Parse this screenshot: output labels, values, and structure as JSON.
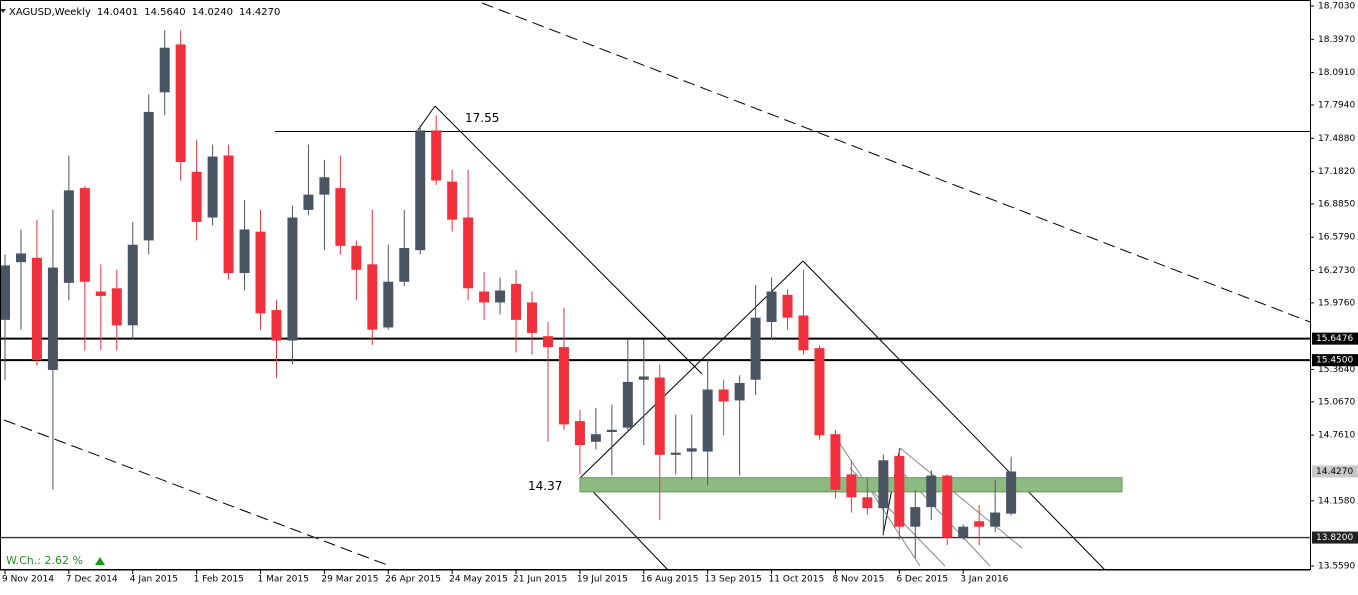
{
  "chart_data": {
    "type": "candlestick",
    "title": "XAGUSD,Weekly",
    "header": [
      "14.0401",
      "14.5640",
      "14.0240",
      "14.4270"
    ],
    "change_label": "W.Ch.: 2.62 %",
    "categories": [
      "9 Nov 2014",
      null,
      null,
      null,
      "7 Dec 2014",
      null,
      null,
      null,
      "4 Jan 2015",
      null,
      null,
      null,
      "1 Feb 2015",
      null,
      null,
      null,
      "1 Mar 2015",
      null,
      null,
      null,
      "29 Mar 2015",
      null,
      null,
      null,
      "26 Apr 2015",
      null,
      null,
      null,
      "24 May 2015",
      null,
      null,
      null,
      "21 Jun 2015",
      null,
      null,
      null,
      "19 Jul 2015",
      null,
      null,
      null,
      "16 Aug 2015",
      null,
      null,
      null,
      "13 Sep 2015",
      null,
      null,
      null,
      "11 Oct 2015",
      null,
      null,
      null,
      "8 Nov 2015",
      null,
      null,
      null,
      "6 Dec 2015",
      null,
      null,
      null,
      "3 Jan 2016",
      null,
      null,
      null
    ],
    "open": [
      15.82,
      16.35,
      16.39,
      15.36,
      16.16,
      17.03,
      16.08,
      16.11,
      15.77,
      16.55,
      17.91,
      18.35,
      17.18,
      16.76,
      17.33,
      16.25,
      16.63,
      15.91,
      15.63,
      16.83,
      16.97,
      17.03,
      16.5,
      16.33,
      15.75,
      16.17,
      16.46,
      17.56,
      17.09,
      16.76,
      16.08,
      15.98,
      16.15,
      15.98,
      15.67,
      15.57,
      14.89,
      14.7,
      14.79,
      14.83,
      15.27,
      15.29,
      14.58,
      14.61,
      14.61,
      15.18,
      15.08,
      15.27,
      15.8,
      16.05,
      15.86,
      15.56,
      14.77,
      14.4,
      14.19,
      14.09,
      14.57,
      13.92,
      14.1,
      14.39,
      13.82,
      13.97,
      13.92,
      14.0401
    ],
    "high": [
      16.42,
      16.65,
      16.74,
      16.83,
      17.33,
      17.05,
      16.33,
      16.28,
      16.72,
      17.89,
      18.48,
      18.48,
      17.47,
      17.43,
      17.43,
      16.92,
      16.83,
      16.0,
      16.87,
      17.43,
      17.29,
      17.33,
      16.55,
      16.83,
      16.51,
      16.83,
      17.61,
      17.7,
      17.2,
      17.2,
      16.26,
      16.21,
      16.28,
      16.08,
      15.8,
      15.93,
      14.99,
      15.01,
      15.04,
      15.64,
      15.64,
      15.41,
      14.95,
      14.95,
      15.45,
      15.27,
      15.31,
      16.14,
      16.21,
      16.1,
      16.28,
      15.59,
      14.81,
      14.53,
      14.37,
      14.58,
      14.64,
      14.26,
      14.44,
      14.4,
      13.94,
      14.12,
      14.35,
      14.564
    ],
    "low": [
      15.27,
      15.73,
      15.4,
      14.26,
      16.0,
      15.54,
      15.54,
      15.54,
      15.64,
      16.42,
      17.7,
      17.1,
      16.55,
      16.69,
      16.19,
      16.09,
      15.73,
      15.29,
      15.41,
      16.78,
      16.46,
      16.42,
      16.0,
      15.59,
      15.73,
      16.13,
      16.42,
      17.06,
      16.63,
      16.0,
      15.82,
      15.87,
      15.52,
      15.5,
      14.7,
      14.81,
      14.4,
      14.63,
      14.39,
      14.79,
      14.67,
      13.98,
      14.4,
      14.35,
      14.3,
      14.76,
      14.39,
      15.13,
      15.64,
      15.73,
      15.5,
      14.72,
      14.18,
      14.05,
      14.03,
      13.84,
      13.8,
      13.63,
      13.98,
      13.75,
      13.8,
      13.75,
      13.87,
      14.024
    ],
    "close": [
      16.32,
      16.43,
      15.45,
      16.3,
      17.01,
      16.17,
      16.04,
      15.77,
      16.51,
      17.73,
      18.32,
      17.27,
      16.72,
      17.32,
      16.25,
      16.65,
      15.88,
      15.63,
      16.76,
      16.97,
      17.13,
      16.5,
      16.28,
      15.73,
      16.17,
      16.48,
      17.56,
      17.1,
      16.74,
      16.11,
      15.98,
      16.09,
      15.82,
      15.7,
      15.57,
      14.86,
      14.67,
      14.77,
      14.81,
      15.25,
      15.3,
      14.58,
      14.6,
      14.64,
      15.18,
      15.07,
      15.24,
      15.84,
      16.08,
      15.84,
      15.54,
      14.76,
      14.26,
      14.19,
      14.09,
      14.53,
      13.92,
      14.1,
      14.39,
      13.82,
      13.92,
      13.92,
      14.05,
      14.427
    ],
    "up_color": "#4a5561",
    "down_color": "#f0303c",
    "ylim": [
      13.559,
      18.703
    ],
    "yticks": [
      {
        "value": 18.703,
        "label": "18.7030"
      },
      {
        "value": 18.397,
        "label": "18.3970"
      },
      {
        "value": 18.091,
        "label": "18.0910"
      },
      {
        "value": 17.794,
        "label": "17.7940"
      },
      {
        "value": 17.488,
        "label": "17.4880"
      },
      {
        "value": 17.182,
        "label": "17.1820"
      },
      {
        "value": 16.885,
        "label": "16.8850"
      },
      {
        "value": 16.579,
        "label": "16.5790"
      },
      {
        "value": 16.273,
        "label": "16.2730"
      },
      {
        "value": 15.976,
        "label": "15.9760"
      },
      {
        "value": 15.364,
        "label": "15.3640"
      },
      {
        "value": 15.067,
        "label": "15.0670"
      },
      {
        "value": 14.761,
        "label": "14.7610"
      },
      {
        "value": 14.158,
        "label": "14.1580"
      },
      {
        "value": 13.559,
        "label": "13.5590"
      }
    ],
    "levels": [
      {
        "value": 15.6476,
        "label": "15.6476"
      },
      {
        "value": 15.45,
        "label": "15.4500"
      },
      {
        "value": 13.82,
        "label": "13.8200"
      }
    ],
    "last_price": {
      "value": 14.427,
      "label": "14.4270"
    },
    "annotations": [
      {
        "text": "17.55",
        "value": 17.55
      },
      {
        "text": "14.37",
        "value": 14.37
      }
    ],
    "zone": [
      14.24,
      14.37
    ],
    "zone_color": "#8dbb82"
  }
}
